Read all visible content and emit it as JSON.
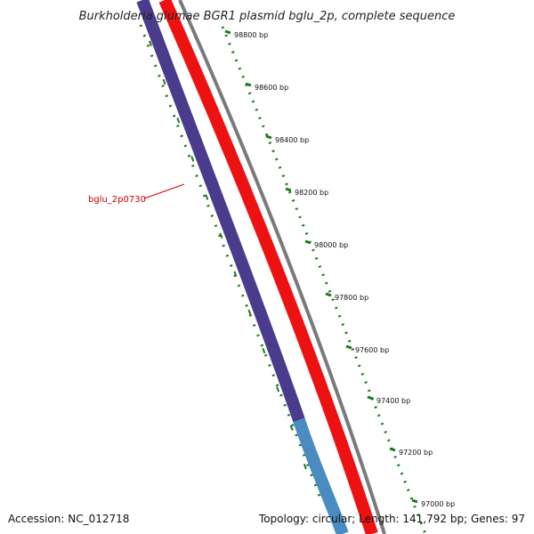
{
  "title": "Burkholderia glumae BGR1 plasmid bglu_2p, complete sequence",
  "accession": "Accession: NC_012718",
  "summary": "Topology: circular; Length: 141,792 bp; Genes: 97",
  "gene_label": "bglu_2p0730",
  "ticks": [
    {
      "label": "98800 bp"
    },
    {
      "label": "98600 bp"
    },
    {
      "label": "98400 bp"
    },
    {
      "label": "98200 bp"
    },
    {
      "label": "98000 bp"
    },
    {
      "label": "97800 bp"
    },
    {
      "label": "97600 bp"
    },
    {
      "label": "97400 bp"
    },
    {
      "label": "97200 bp"
    },
    {
      "label": "97000 bp"
    }
  ],
  "colors": {
    "backbone": "#7a7a7a",
    "gene_forward": "#ee1111",
    "gene_reverse": "#4a3b8c",
    "gene_reverse_light": "#4a8cc0",
    "ticks": "#1a7a1a",
    "gene_label": "#cc0000"
  }
}
